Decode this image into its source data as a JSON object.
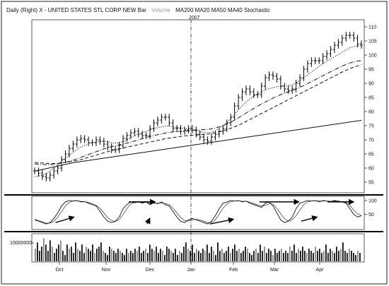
{
  "chart_data": {
    "type": "line",
    "header": {
      "prefix": "Daily (Right) X - UNITED STATES STL CORP NEW Bar",
      "volume_label": "Volume",
      "indicators": "MA200 MA20 MA50 MA40 Stochastic"
    },
    "divider_label": "2007",
    "x_axis": {
      "months": [
        "Oct",
        "Nov",
        "Dec",
        "Jan",
        "Feb",
        "Mar",
        "Apr"
      ]
    },
    "price_panel": {
      "ylim": [
        52,
        112
      ],
      "ticks": [
        55,
        60,
        65,
        70,
        75,
        80,
        85,
        90,
        95,
        100,
        105,
        110
      ],
      "series": {
        "price": {
          "values": [
            59,
            58.2,
            57,
            56.5,
            57.5,
            59,
            60,
            63,
            65,
            67,
            68.5,
            70,
            70.5,
            70,
            69,
            69,
            70,
            69.5,
            68.5,
            67.5,
            66.5,
            66.5,
            68,
            70.5,
            71.5,
            72.5,
            73,
            72,
            71.5,
            71.5,
            74,
            76,
            77,
            78,
            78,
            76,
            74,
            74,
            73,
            73.5,
            74,
            73.5,
            72,
            71,
            70,
            69.5,
            71,
            72,
            73,
            74,
            76,
            78,
            82,
            85,
            87,
            88,
            87,
            86,
            86,
            89,
            92,
            93,
            92.5,
            91.5,
            89,
            88,
            87.5,
            88,
            90,
            92,
            95,
            97,
            98,
            98,
            98,
            99.5,
            100.5,
            102,
            103.5,
            104.5,
            106,
            107,
            107,
            106,
            104,
            103.5
          ]
        },
        "ma20": {
          "style": "dotted",
          "values": [
            57,
            57.2,
            57.4,
            58,
            59,
            60,
            61,
            62.5,
            63.5,
            64.5,
            65.5,
            66.5,
            67.5,
            68,
            68.5,
            69,
            69.2,
            69.4,
            69.5,
            69.3,
            69,
            68.8,
            69,
            69.4,
            70,
            70.8,
            71.5,
            72,
            72.5,
            73,
            73.5,
            74,
            74.3,
            74.6,
            74.8,
            74.9,
            74.6,
            74.4,
            74.2,
            74,
            73.8,
            73.5,
            73.2,
            72.9,
            72.6,
            72.5,
            72.7,
            73.2,
            74,
            75,
            76.2,
            77.6,
            79,
            80.6,
            82,
            83.3,
            84.5,
            85.5,
            86.3,
            87,
            87.6,
            88.1,
            88.5,
            88.8,
            89,
            89.1,
            89.2,
            89.5,
            90.2,
            91,
            92,
            93,
            94,
            95,
            96,
            97,
            97.8,
            98.6,
            99.4,
            100.2,
            101,
            101.8,
            102.6,
            103,
            103.3,
            103.5
          ]
        },
        "ma40": {
          "style": "dash-dot",
          "values": [
            61.5,
            61.4,
            61.3,
            61.2,
            61.2,
            61.3,
            61.5,
            61.8,
            62.1,
            62.4,
            62.8,
            63.3,
            63.8,
            64.3,
            64.8,
            65.3,
            65.8,
            66.3,
            66.8,
            67.2,
            67.6,
            67.9,
            68.2,
            68.5,
            68.8,
            69.2,
            69.6,
            70,
            70.4,
            70.8,
            71.2,
            71.5,
            71.8,
            72.1,
            72.4,
            72.6,
            72.8,
            72.9,
            73,
            73.1,
            73.2,
            73.3,
            73.4,
            73.5,
            73.6,
            73.7,
            73.9,
            74.2,
            74.6,
            75,
            75.6,
            76.2,
            77,
            77.8,
            78.6,
            79.5,
            80.3,
            81.1,
            81.9,
            82.7,
            83.4,
            84.1,
            84.8,
            85.4,
            86,
            86.5,
            87,
            87.5,
            88,
            88.6,
            89.2,
            89.9,
            90.6,
            91.3,
            92,
            92.7,
            93.4,
            94.1,
            94.8,
            95.5,
            96.1,
            96.7,
            97.2,
            97.6,
            97.9,
            98.1
          ]
        },
        "ma50": {
          "style": "dashed",
          "values": [
            62,
            61.9,
            61.8,
            61.7,
            61.6,
            61.6,
            61.7,
            61.8,
            62,
            62.2,
            62.4,
            62.7,
            63,
            63.4,
            63.8,
            64.2,
            64.6,
            65,
            65.4,
            65.8,
            66.2,
            66.5,
            66.8,
            67.1,
            67.4,
            67.7,
            68,
            68.3,
            68.6,
            68.9,
            69.2,
            69.5,
            69.8,
            70.1,
            70.4,
            70.6,
            70.8,
            71,
            71.2,
            71.4,
            71.5,
            71.6,
            71.7,
            71.8,
            71.9,
            72,
            72.2,
            72.5,
            72.8,
            73.2,
            73.6,
            74.1,
            74.6,
            75.2,
            75.8,
            76.5,
            77.2,
            77.9,
            78.6,
            79.3,
            80,
            80.7,
            81.4,
            82.1,
            82.8,
            83.5,
            84.2,
            84.9,
            85.6,
            86.3,
            87,
            87.7,
            88.4,
            89.1,
            89.8,
            90.5,
            91.2,
            91.9,
            92.6,
            93.3,
            94,
            94.6,
            95.2,
            95.7,
            96.2,
            96.6
          ]
        },
        "ma200": {
          "style": "solid",
          "values": [
            59,
            59.2,
            59.5,
            59.8,
            60.1,
            60.4,
            60.7,
            61,
            61.3,
            61.6,
            61.9,
            62.1,
            62.3,
            62.5,
            62.7,
            62.9,
            63.1,
            63.3,
            63.5,
            63.7,
            63.9,
            64.1,
            64.3,
            64.5,
            64.7,
            64.9,
            65.1,
            65.3,
            65.5,
            65.7,
            65.9,
            66.1,
            66.3,
            66.5,
            66.7,
            66.9,
            67.1,
            67.3,
            67.5,
            67.7,
            67.9,
            68.1,
            68.3,
            68.5,
            68.7,
            68.9,
            69.1,
            69.3,
            69.5,
            69.7,
            69.9,
            70.1,
            70.3,
            70.5,
            70.7,
            70.9,
            71.1,
            71.3,
            71.5,
            71.7,
            71.9,
            72.1,
            72.3,
            72.5,
            72.7,
            72.9,
            73.1,
            73.3,
            73.5,
            73.7,
            73.9,
            74.1,
            74.3,
            74.5,
            74.7,
            74.9,
            75.1,
            75.3,
            75.5,
            75.7,
            75.9,
            76.1,
            76.3,
            76.5,
            76.7,
            76.9
          ]
        }
      }
    },
    "stochastic_panel": {
      "ylim": [
        0,
        110
      ],
      "ticks": [
        50,
        100
      ],
      "k": [
        30,
        25,
        20,
        15,
        20,
        35,
        55,
        80,
        95,
        100,
        98,
        100,
        95,
        96,
        90,
        85,
        80,
        60,
        40,
        25,
        20,
        25,
        40,
        70,
        85,
        95,
        92,
        96,
        90,
        95,
        85,
        92,
        88,
        95,
        85,
        80,
        60,
        40,
        25,
        20,
        30,
        35,
        30,
        25,
        20,
        15,
        25,
        45,
        70,
        90,
        95,
        100,
        98,
        100,
        95,
        98,
        90,
        85,
        80,
        75,
        90,
        95,
        80,
        55,
        30,
        20,
        25,
        40,
        70,
        90,
        95,
        100,
        98,
        100,
        95,
        100,
        98,
        96,
        100,
        97,
        95,
        90,
        70,
        50,
        40,
        45
      ],
      "d": [
        32,
        28,
        23,
        18,
        18,
        25,
        40,
        60,
        80,
        93,
        98,
        99,
        97,
        96,
        93,
        88,
        83,
        72,
        55,
        38,
        27,
        24,
        30,
        50,
        70,
        88,
        93,
        94,
        93,
        93,
        90,
        90,
        90,
        91,
        89,
        85,
        72,
        55,
        38,
        28,
        25,
        30,
        32,
        30,
        25,
        20,
        20,
        30,
        50,
        72,
        88,
        96,
        98,
        99,
        97,
        97,
        94,
        89,
        84,
        80,
        82,
        88,
        87,
        72,
        52,
        34,
        25,
        30,
        45,
        65,
        85,
        95,
        98,
        99,
        98,
        98,
        98,
        97,
        98,
        98,
        96,
        93,
        82,
        65,
        52,
        46
      ],
      "arrows": [
        {
          "from": [
            8,
            20
          ],
          "to": [
            15,
            40
          ]
        },
        {
          "from": [
            36,
            95
          ],
          "to": [
            46,
            95
          ]
        },
        {
          "from": [
            43,
            15
          ],
          "to": [
            44,
            35
          ]
        },
        {
          "from": [
            67,
            15
          ],
          "to": [
            76,
            32
          ]
        },
        {
          "from": [
            86,
            95
          ],
          "to": [
            101,
            95
          ]
        },
        {
          "from": [
            102,
            25
          ],
          "to": [
            108,
            40
          ]
        },
        {
          "from": [
            112,
            95
          ],
          "to": [
            122,
            95
          ]
        }
      ]
    },
    "volume_panel": {
      "ylim": [
        0,
        12500000
      ],
      "tick_label": "10000000",
      "values": [
        6,
        9,
        5,
        7,
        11,
        8,
        5,
        10,
        7,
        4,
        6,
        8,
        10,
        5,
        3,
        8,
        6,
        7,
        4,
        9,
        6,
        5,
        8,
        4,
        7,
        6,
        5,
        8,
        4,
        6,
        7,
        9,
        5,
        4,
        3,
        7,
        6,
        5,
        4,
        6,
        5,
        4,
        3,
        6,
        4,
        5,
        4,
        6,
        5,
        7,
        4,
        5,
        6,
        4,
        8,
        6,
        5,
        7,
        4,
        6,
        5,
        3,
        7,
        6,
        5,
        4,
        6,
        3,
        5,
        4,
        7,
        9,
        6,
        5,
        8,
        4,
        6,
        5,
        4,
        6,
        5,
        8,
        4,
        7,
        5,
        3,
        9,
        5,
        6,
        4,
        5,
        7,
        4,
        6,
        8,
        5,
        6,
        4,
        5,
        7,
        6,
        4,
        3,
        5,
        6,
        4,
        8,
        5,
        7,
        4,
        6,
        5,
        3,
        6,
        4,
        5,
        6,
        4,
        5,
        4,
        7,
        5,
        8,
        4,
        6,
        5,
        7,
        5,
        4,
        6,
        5,
        4,
        7,
        5,
        6,
        4,
        5,
        8,
        4,
        6,
        5,
        4,
        7,
        5,
        6,
        9,
        5,
        4,
        6,
        5,
        4,
        3,
        5,
        4
      ]
    }
  }
}
